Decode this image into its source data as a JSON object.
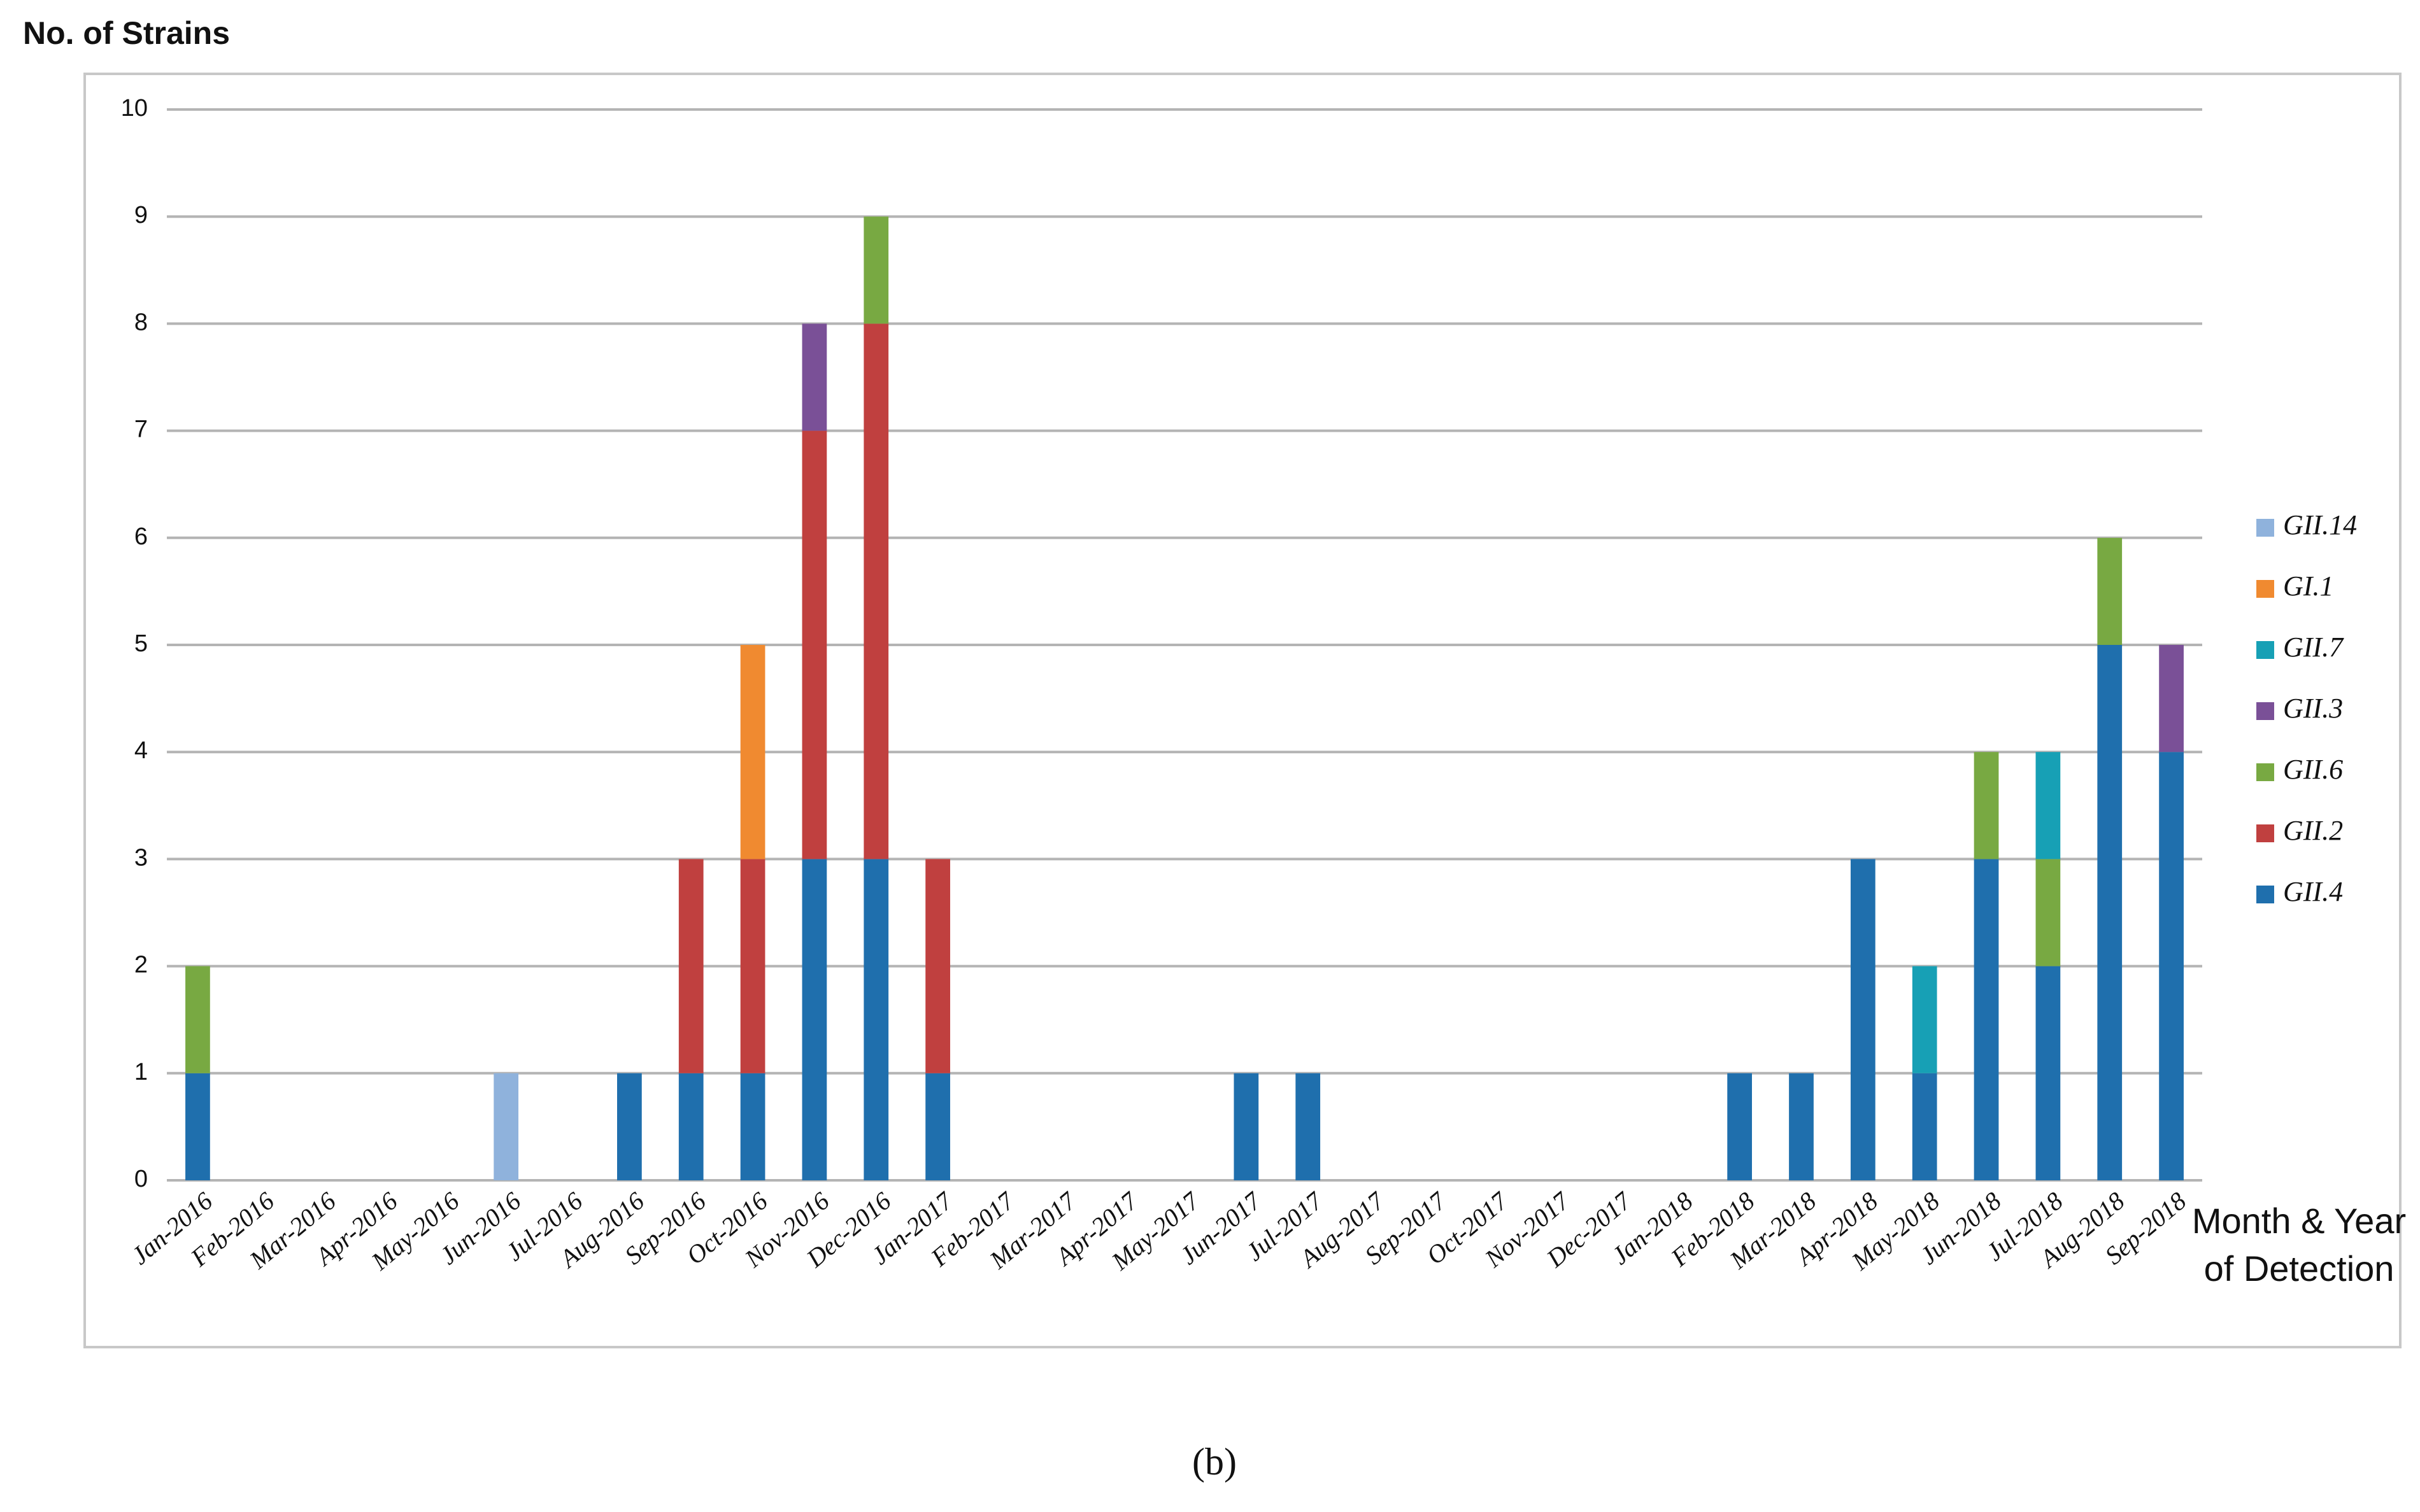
{
  "chart_data": {
    "type": "stacked_bar",
    "y_label": "No. of Strains",
    "x_label": "Month & Year of Detection",
    "caption": "(b)",
    "categories": [
      "Jan-2016",
      "Feb-2016",
      "Mar-2016",
      "Apr-2016",
      "May-2016",
      "Jun-2016",
      "Jul-2016",
      "Aug-2016",
      "Sep-2016",
      "Oct-2016",
      "Nov-2016",
      "Dec-2016",
      "Jan-2017",
      "Feb-2017",
      "Mar-2017",
      "Apr-2017",
      "May-2017",
      "Jun-2017",
      "Jul-2017",
      "Aug-2017",
      "Sep-2017",
      "Oct-2017",
      "Nov-2017",
      "Dec-2017",
      "Jan-2018",
      "Feb-2018",
      "Mar-2018",
      "Apr-2018",
      "May-2018",
      "Jun-2018",
      "Jul-2018",
      "Aug-2018",
      "Sep-2018"
    ],
    "series": [
      {
        "name": "GII.4",
        "color": "#1f6fad",
        "values": [
          1,
          0,
          0,
          0,
          0,
          0,
          0,
          1,
          1,
          1,
          3,
          3,
          1,
          0,
          0,
          0,
          0,
          1,
          1,
          0,
          0,
          0,
          0,
          0,
          0,
          1,
          1,
          3,
          1,
          3,
          2,
          5,
          4
        ]
      },
      {
        "name": "GII.2",
        "color": "#c0403f",
        "values": [
          0,
          0,
          0,
          0,
          0,
          0,
          0,
          0,
          2,
          2,
          4,
          5,
          2,
          0,
          0,
          0,
          0,
          0,
          0,
          0,
          0,
          0,
          0,
          0,
          0,
          0,
          0,
          0,
          0,
          0,
          0,
          0,
          0
        ]
      },
      {
        "name": "GII.6",
        "color": "#78a942",
        "values": [
          1,
          0,
          0,
          0,
          0,
          0,
          0,
          0,
          0,
          0,
          0,
          1,
          0,
          0,
          0,
          0,
          0,
          0,
          0,
          0,
          0,
          0,
          0,
          0,
          0,
          0,
          0,
          0,
          0,
          1,
          1,
          1,
          0
        ]
      },
      {
        "name": "GII.3",
        "color": "#7a5097",
        "values": [
          0,
          0,
          0,
          0,
          0,
          0,
          0,
          0,
          0,
          0,
          1,
          0,
          0,
          0,
          0,
          0,
          0,
          0,
          0,
          0,
          0,
          0,
          0,
          0,
          0,
          0,
          0,
          0,
          0,
          0,
          0,
          0,
          1
        ]
      },
      {
        "name": "GII.7",
        "color": "#17a0b5",
        "values": [
          0,
          0,
          0,
          0,
          0,
          0,
          0,
          0,
          0,
          0,
          0,
          0,
          0,
          0,
          0,
          0,
          0,
          0,
          0,
          0,
          0,
          0,
          0,
          0,
          0,
          0,
          0,
          0,
          1,
          0,
          1,
          0,
          0
        ]
      },
      {
        "name": "GI.1",
        "color": "#f08a30",
        "values": [
          0,
          0,
          0,
          0,
          0,
          0,
          0,
          0,
          0,
          2,
          0,
          0,
          0,
          0,
          0,
          0,
          0,
          0,
          0,
          0,
          0,
          0,
          0,
          0,
          0,
          0,
          0,
          0,
          0,
          0,
          0,
          0,
          0
        ]
      },
      {
        "name": "GII.14",
        "color": "#8fb2dc",
        "values": [
          0,
          0,
          0,
          0,
          0,
          1,
          0,
          0,
          0,
          0,
          0,
          0,
          0,
          0,
          0,
          0,
          0,
          0,
          0,
          0,
          0,
          0,
          0,
          0,
          0,
          0,
          0,
          0,
          0,
          0,
          0,
          0,
          0
        ]
      }
    ],
    "ylim": [
      0,
      10
    ],
    "yticks": [
      0,
      1,
      2,
      3,
      4,
      5,
      6,
      7,
      8,
      9,
      10
    ],
    "grid": true,
    "legend": "right"
  }
}
